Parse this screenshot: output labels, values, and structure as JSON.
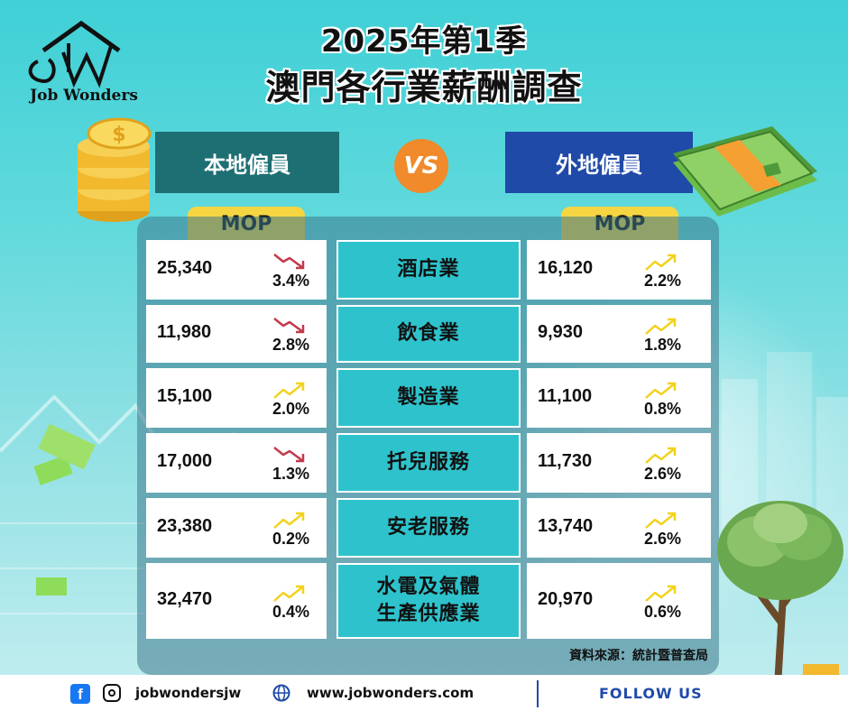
{
  "brand": {
    "name": "Job Wonders"
  },
  "title": {
    "line1": "2025年第1季",
    "line2": "澳門各行業薪酬調查"
  },
  "headers": {
    "local": "本地僱員",
    "vs": "VS",
    "foreign": "外地僱員",
    "currency_left": "MOP",
    "currency_right": "MOP"
  },
  "colors": {
    "up": "#f2d21c",
    "down": "#c23a4c",
    "local": "#1e6f74",
    "foreign": "#1f4aa8",
    "industry": "#2ec3cc",
    "mop": "#f5d642"
  },
  "rows": [
    {
      "industry": [
        "酒店業"
      ],
      "local_wage": "25,340",
      "local_change": "3.4%",
      "local_trend": "down-icon",
      "foreign_wage": "16,120",
      "foreign_change": "2.2%",
      "foreign_trend": "up-icon"
    },
    {
      "industry": [
        "飲食業"
      ],
      "local_wage": "11,980",
      "local_change": "2.8%",
      "local_trend": "down-icon",
      "foreign_wage": "9,930",
      "foreign_change": "1.8%",
      "foreign_trend": "up-icon"
    },
    {
      "industry": [
        "製造業"
      ],
      "local_wage": "15,100",
      "local_change": "2.0%",
      "local_trend": "up-icon",
      "foreign_wage": "11,100",
      "foreign_change": "0.8%",
      "foreign_trend": "up-icon"
    },
    {
      "industry": [
        "托兒服務"
      ],
      "local_wage": "17,000",
      "local_change": "1.3%",
      "local_trend": "down-icon",
      "foreign_wage": "11,730",
      "foreign_change": "2.6%",
      "foreign_trend": "up-icon"
    },
    {
      "industry": [
        "安老服務"
      ],
      "local_wage": "23,380",
      "local_change": "0.2%",
      "local_trend": "up-icon",
      "foreign_wage": "13,740",
      "foreign_change": "2.6%",
      "foreign_trend": "up-icon"
    },
    {
      "industry": [
        "水電及氣體",
        "生產供應業"
      ],
      "local_wage": "32,470",
      "local_change": "0.4%",
      "local_trend": "up-icon",
      "foreign_wage": "20,970",
      "foreign_change": "0.6%",
      "foreign_trend": "up-icon"
    }
  ],
  "source": "資料來源：統計暨普查局",
  "footer": {
    "handle": "jobwondersjw",
    "website": "www.jobwonders.com",
    "follow": "FOLLOW US"
  },
  "icons": [
    "facebook-icon",
    "instagram-icon",
    "globe-icon",
    "coins-icon",
    "cash-stack-icon",
    "money-tree-icon"
  ]
}
